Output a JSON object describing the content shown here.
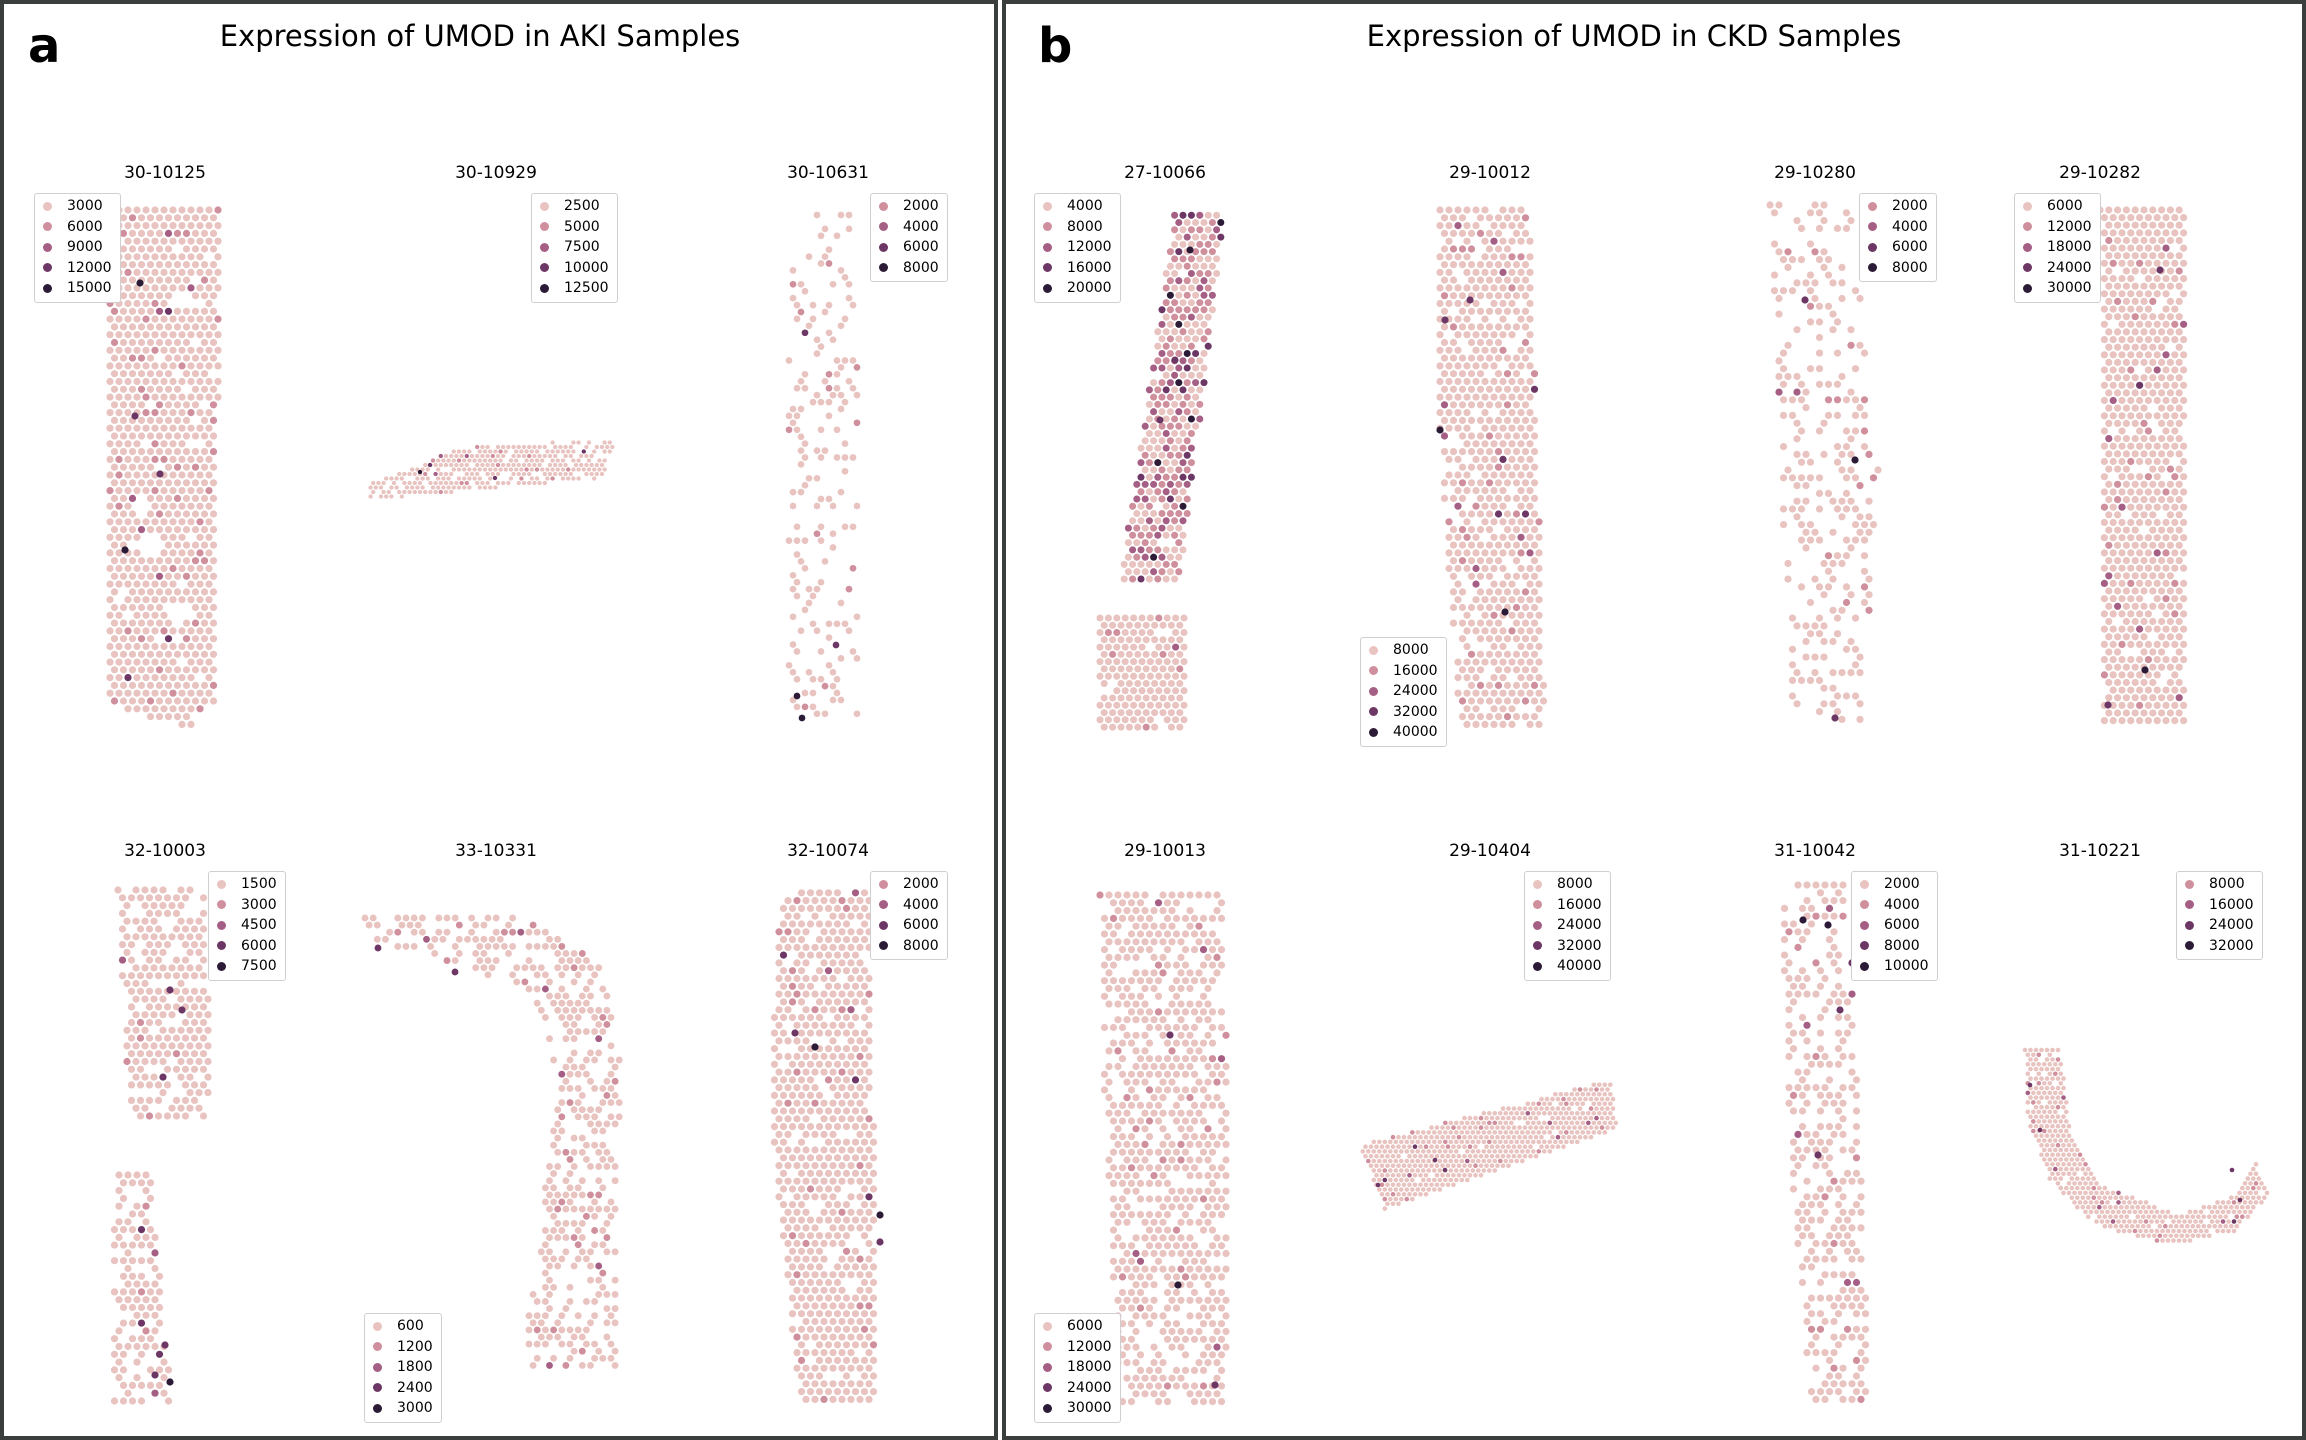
{
  "panels": {
    "a": {
      "letter": "a",
      "title": "Expression of UMOD in AKI Samples"
    },
    "b": {
      "letter": "b",
      "title": "Expression of UMOD in CKD Samples"
    }
  },
  "colors": {
    "frame": "#3a3f3d",
    "palette": [
      "#e8c3c0",
      "#cf8f9c",
      "#a55f84",
      "#6d3765",
      "#2c1b36"
    ]
  },
  "chart_data": [
    {
      "type": "scatter",
      "panel": "a",
      "title": "30-10125",
      "legend_placement": "top-left",
      "legend_labels": [
        "3000",
        "6000",
        "9000",
        "12000",
        "15000"
      ]
    },
    {
      "type": "scatter",
      "panel": "a",
      "title": "30-10929",
      "legend_placement": "top-right",
      "legend_labels": [
        "2500",
        "5000",
        "7500",
        "10000",
        "12500"
      ]
    },
    {
      "type": "scatter",
      "panel": "a",
      "title": "30-10631",
      "legend_placement": "top-right",
      "legend_labels": [
        "2000",
        "4000",
        "6000",
        "8000"
      ]
    },
    {
      "type": "scatter",
      "panel": "a",
      "title": "32-10003",
      "legend_placement": "top-right",
      "legend_labels": [
        "1500",
        "3000",
        "4500",
        "6000",
        "7500"
      ]
    },
    {
      "type": "scatter",
      "panel": "a",
      "title": "33-10331",
      "legend_placement": "bottom-left",
      "legend_labels": [
        "600",
        "1200",
        "1800",
        "2400",
        "3000"
      ]
    },
    {
      "type": "scatter",
      "panel": "a",
      "title": "32-10074",
      "legend_placement": "top-right",
      "legend_labels": [
        "2000",
        "4000",
        "6000",
        "8000"
      ]
    },
    {
      "type": "scatter",
      "panel": "b",
      "title": "27-10066",
      "legend_placement": "top-left",
      "legend_labels": [
        "4000",
        "8000",
        "12000",
        "16000",
        "20000"
      ]
    },
    {
      "type": "scatter",
      "panel": "b",
      "title": "29-10012",
      "legend_placement": "bottom-left",
      "legend_labels": [
        "8000",
        "16000",
        "24000",
        "32000",
        "40000"
      ]
    },
    {
      "type": "scatter",
      "panel": "b",
      "title": "29-10280",
      "legend_placement": "top-right",
      "legend_labels": [
        "2000",
        "4000",
        "6000",
        "8000"
      ]
    },
    {
      "type": "scatter",
      "panel": "b",
      "title": "29-10282",
      "legend_placement": "top-left",
      "legend_labels": [
        "6000",
        "12000",
        "18000",
        "24000",
        "30000"
      ]
    },
    {
      "type": "scatter",
      "panel": "b",
      "title": "29-10013",
      "legend_placement": "bottom-left",
      "legend_labels": [
        "6000",
        "12000",
        "18000",
        "24000",
        "30000"
      ]
    },
    {
      "type": "scatter",
      "panel": "b",
      "title": "29-10404",
      "legend_placement": "top-right",
      "legend_labels": [
        "8000",
        "16000",
        "24000",
        "32000",
        "40000"
      ]
    },
    {
      "type": "scatter",
      "panel": "b",
      "title": "31-10042",
      "legend_placement": "top-right",
      "legend_labels": [
        "2000",
        "4000",
        "6000",
        "8000",
        "10000"
      ]
    },
    {
      "type": "scatter",
      "panel": "b",
      "title": "31-10221",
      "legend_placement": "top-right",
      "legend_labels": [
        "8000",
        "16000",
        "24000",
        "32000"
      ]
    }
  ]
}
